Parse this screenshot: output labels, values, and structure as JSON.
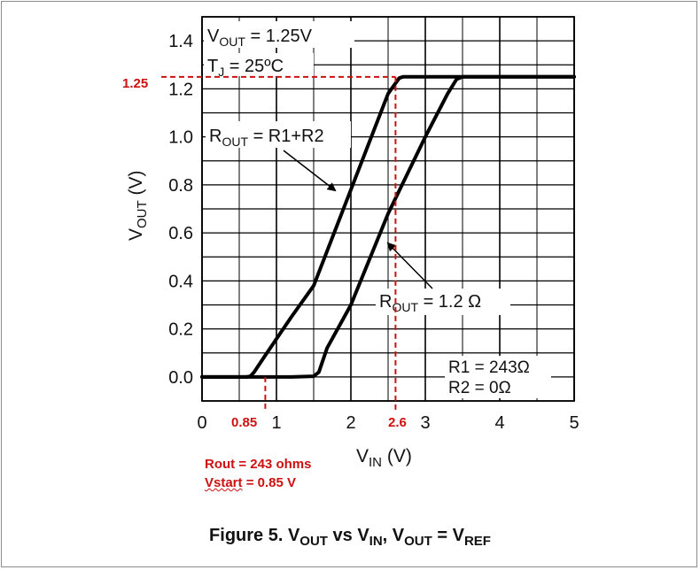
{
  "chart_data": {
    "type": "line",
    "xlabel_main": "V",
    "xlabel_sub": "IN",
    "xlabel_unit": " (V)",
    "ylabel_main": "V",
    "ylabel_sub": "OUT",
    "ylabel_unit": " (V)",
    "xlim": [
      0,
      5
    ],
    "ylim": [
      -0.1,
      1.5
    ],
    "x_ticks": [
      0,
      1,
      2,
      3,
      4,
      5
    ],
    "x_tick_labels": [
      "0",
      "1",
      "2",
      "3",
      "4",
      "5"
    ],
    "y_ticks": [
      0.0,
      0.2,
      0.4,
      0.6,
      0.8,
      1.0,
      1.2,
      1.4
    ],
    "y_tick_labels": [
      "0.0",
      "0.2",
      "0.4",
      "0.6",
      "0.8",
      "1.0",
      "1.2",
      "1.4"
    ],
    "x_grid_step": 0.5,
    "y_grid_step": 0.1,
    "series": [
      {
        "name": "ROUT = R1+R2",
        "x": [
          0,
          0.6,
          0.65,
          0.7,
          0.85,
          1.2,
          1.5,
          2.0,
          2.5,
          2.65,
          2.7,
          5
        ],
        "y": [
          0,
          0,
          0.003,
          0.02,
          0.09,
          0.25,
          0.38,
          0.78,
          1.18,
          1.245,
          1.25,
          1.25
        ]
      },
      {
        "name": "ROUT = 1.2 Ω",
        "x": [
          0,
          1.2,
          1.5,
          1.57,
          1.68,
          2.0,
          2.5,
          3.0,
          3.3,
          3.42,
          3.5,
          5
        ],
        "y": [
          0,
          0,
          0.003,
          0.02,
          0.12,
          0.3,
          0.68,
          1.0,
          1.18,
          1.24,
          1.25,
          1.25
        ]
      }
    ],
    "legend_vout_main": "V",
    "legend_vout_sub": "OUT",
    "legend_vout_value": " = 1.25V",
    "legend_tj_main": "T",
    "legend_tj_sub": "J",
    "legend_tj_value": " = 25ºC",
    "label_rout1_main": "R",
    "label_rout1_sub": "OUT",
    "label_rout1_value": " = R1+R2",
    "label_rout2_main": "R",
    "label_rout2_sub": "OUT",
    "label_rout2_value": " = 1.2 Ω",
    "r1_label": "R1 = 243Ω",
    "r2_label": "R2 = 0Ω",
    "annotations": {
      "y_marker_value": 1.25,
      "y_marker_label": "1.25",
      "x_marker1_value": 0.85,
      "x_marker1_label": "0.85",
      "x_marker2_value": 2.6,
      "x_marker2_label": "2.6"
    },
    "notes": [
      "Rout = 243 ohms",
      "Vstart",
      " = 0.85 V"
    ]
  },
  "caption": {
    "prefix": "Figure 5. V",
    "sub1": "OUT",
    "mid1": " vs V",
    "sub2": "IN",
    "mid2": ", V",
    "sub3": "OUT",
    "mid3": " = V",
    "sub4": "REF"
  },
  "colors": {
    "line": "#000000",
    "grid": "#000000",
    "annotation": "#cc1111"
  }
}
